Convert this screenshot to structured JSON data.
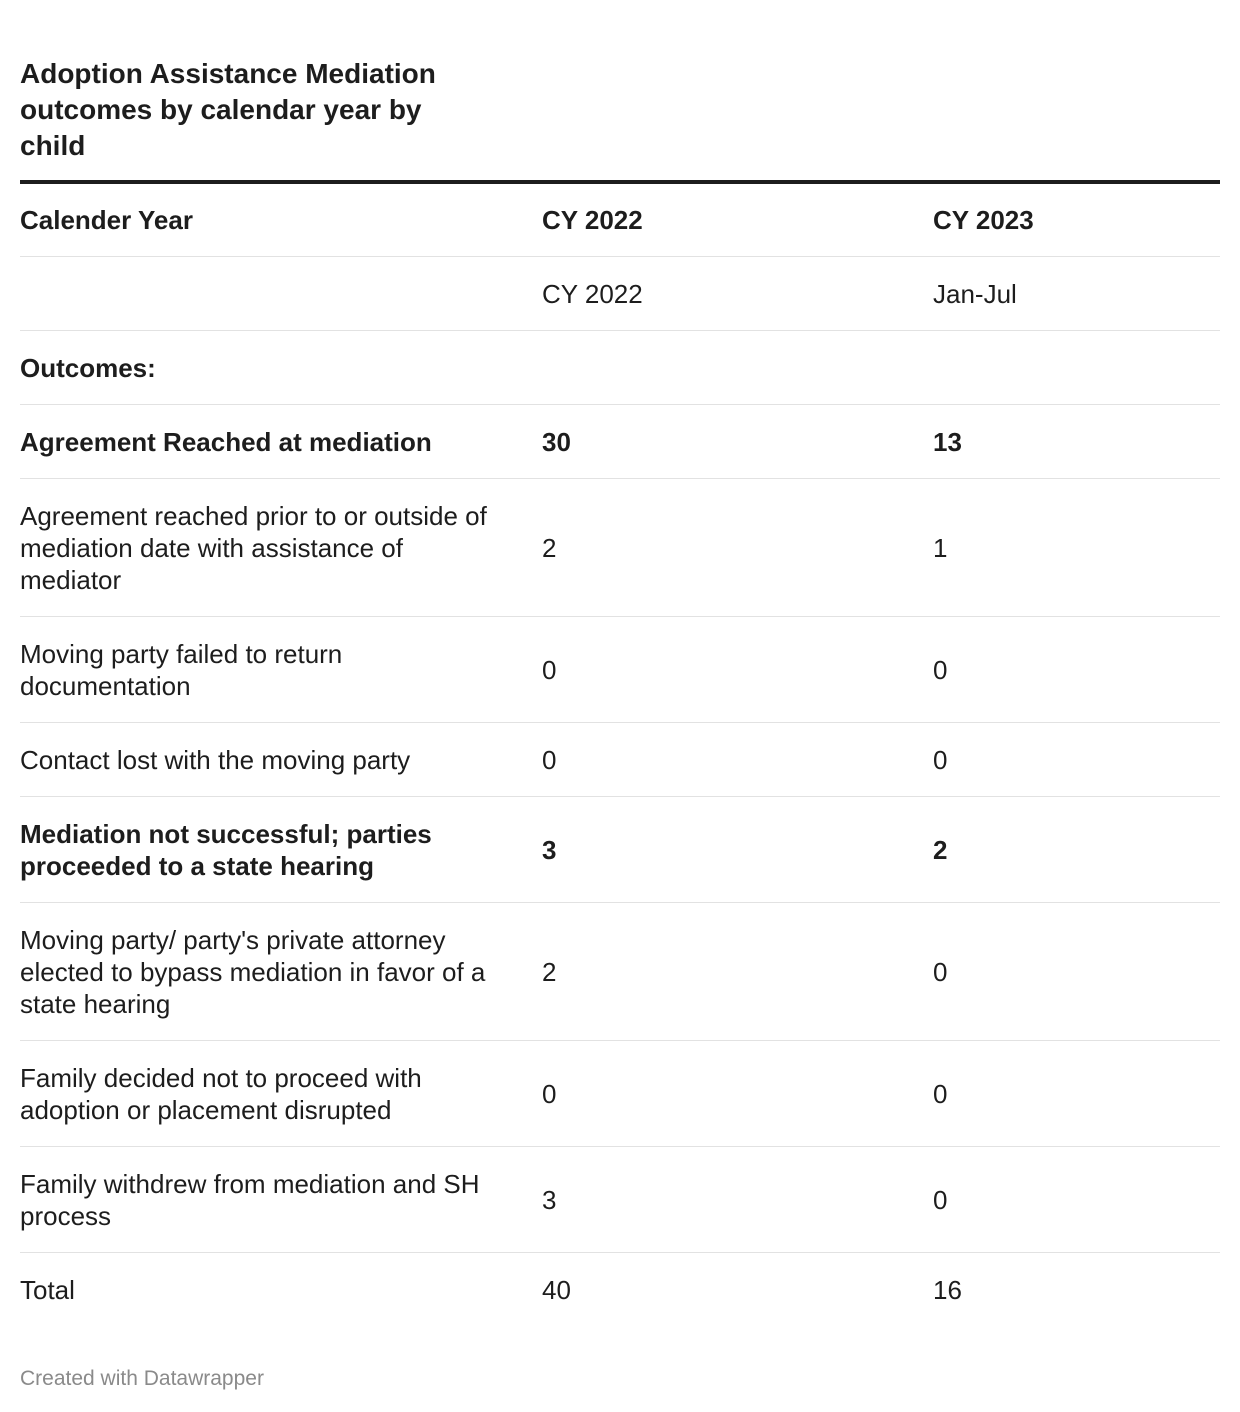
{
  "title": "Adoption Assistance Mediation outcomes by calendar year by child",
  "table": {
    "columns": [
      "Calender Year",
      "CY 2022",
      "CY 2023"
    ],
    "rows": [
      {
        "label": "",
        "cy2022": "CY 2022",
        "cy2023": "Jan-Jul",
        "bold": false
      },
      {
        "label": "Outcomes:",
        "cy2022": "",
        "cy2023": "",
        "bold": true
      },
      {
        "label": "Agreement Reached at mediation",
        "cy2022": "30",
        "cy2023": "13",
        "bold": true
      },
      {
        "label": "Agreement reached prior to or outside of mediation date with assistance of mediator",
        "cy2022": "2",
        "cy2023": "1",
        "bold": false
      },
      {
        "label": "Moving party failed to return documentation",
        "cy2022": "0",
        "cy2023": "0",
        "bold": false
      },
      {
        "label": "Contact lost with the moving party",
        "cy2022": "0",
        "cy2023": "0",
        "bold": false
      },
      {
        "label": "Mediation not successful; parties proceeded to a state hearing",
        "cy2022": "3",
        "cy2023": "2",
        "bold": true
      },
      {
        "label": "Moving party/ party's private attorney elected to bypass mediation in favor of a state hearing",
        "cy2022": "2",
        "cy2023": "0",
        "bold": false
      },
      {
        "label": "Family decided not to proceed with adoption or placement disrupted",
        "cy2022": "0",
        "cy2023": "0",
        "bold": false
      },
      {
        "label": "Family withdrew from mediation and SH process",
        "cy2022": "3",
        "cy2023": "0",
        "bold": false
      },
      {
        "label": "Total",
        "cy2022": "40",
        "cy2023": "16",
        "bold": false
      }
    ]
  },
  "footer": "Created with Datawrapper"
}
